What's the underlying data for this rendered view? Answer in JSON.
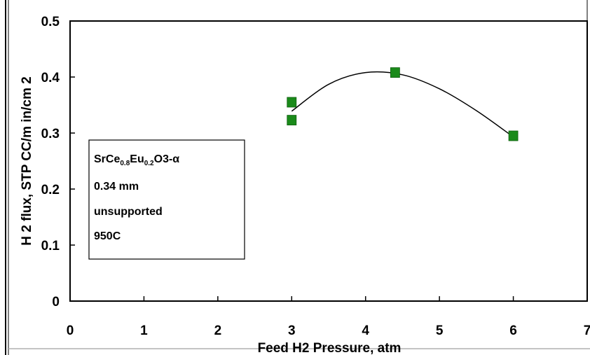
{
  "chart_data": {
    "type": "scatter",
    "title": "",
    "xlabel": "Feed H2 Pressure, atm",
    "ylabel": "H 2 flux, STP CC/m in/cm 2",
    "xlim": [
      0,
      7
    ],
    "ylim": [
      0,
      0.5
    ],
    "x_ticks": [
      "0",
      "1",
      "2",
      "3",
      "4",
      "5",
      "6",
      "7"
    ],
    "y_ticks": [
      "0",
      "0.1",
      "0.2",
      "0.3",
      "0.4",
      "0.5"
    ],
    "grid": false,
    "series": [
      {
        "marker": "square",
        "color": "#1a8a1a",
        "points": [
          {
            "x": 3.0,
            "y": 0.355
          },
          {
            "x": 3.0,
            "y": 0.323
          },
          {
            "x": 4.4,
            "y": 0.408
          },
          {
            "x": 6.0,
            "y": 0.295
          }
        ]
      }
    ],
    "trendline": {
      "type": "polynomial",
      "color": "#000000",
      "points": [
        {
          "x": 3.0,
          "y": 0.339
        },
        {
          "x": 3.5,
          "y": 0.387
        },
        {
          "x": 4.0,
          "y": 0.408
        },
        {
          "x": 4.5,
          "y": 0.404
        },
        {
          "x": 5.0,
          "y": 0.379
        },
        {
          "x": 5.5,
          "y": 0.34
        },
        {
          "x": 6.0,
          "y": 0.293
        }
      ]
    },
    "annotation": {
      "formula": {
        "base1": "SrCe",
        "sub1": "0.8",
        "base2": "Eu",
        "sub2": "0.2",
        "tail": "O3-α"
      },
      "lines": [
        "0.34 mm",
        "unsupported",
        "950C"
      ]
    }
  }
}
